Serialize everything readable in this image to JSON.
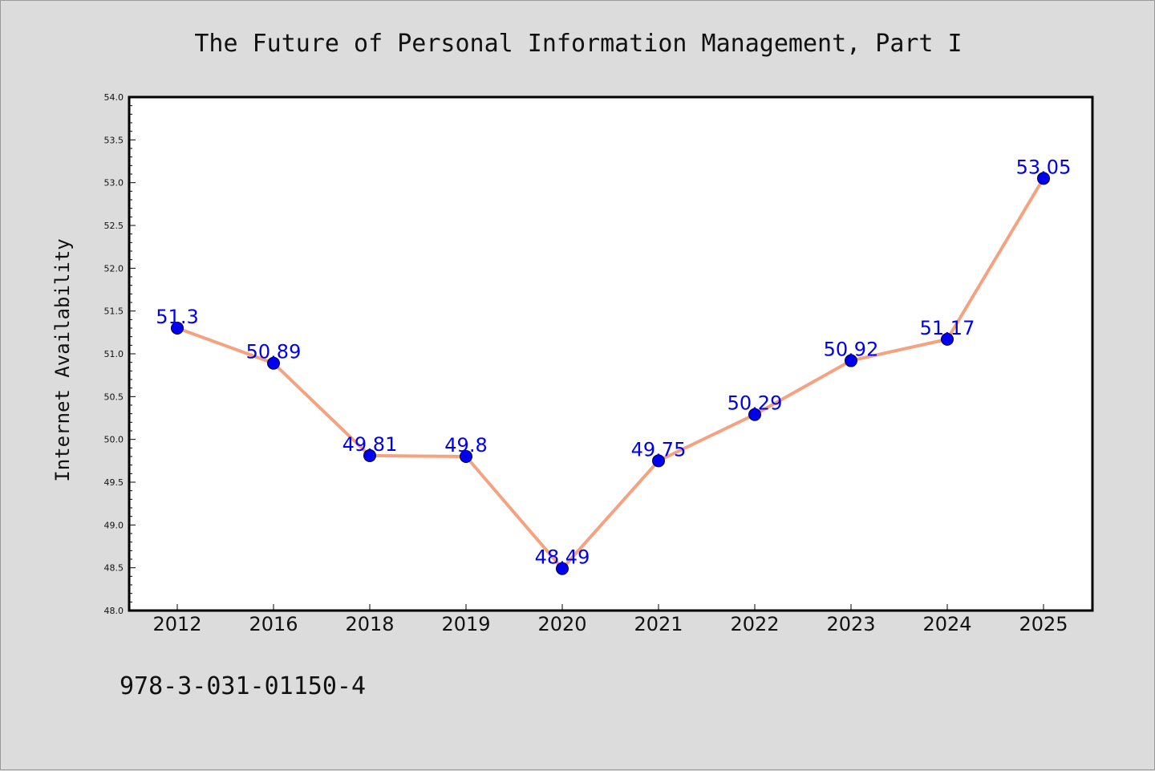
{
  "chart_data": {
    "type": "line",
    "title": "The Future of Personal Information Management, Part I",
    "xlabel": "",
    "ylabel": "Internet Availability",
    "categories": [
      "2012",
      "2016",
      "2018",
      "2019",
      "2020",
      "2021",
      "2022",
      "2023",
      "2024",
      "2025"
    ],
    "series": [
      {
        "values": [
          51.3,
          50.89,
          49.81,
          49.8,
          48.49,
          49.75,
          50.29,
          50.92,
          51.17,
          53.05
        ],
        "labels": [
          "51.3",
          "50.89",
          "49.81",
          "49.8",
          "48.49",
          "49.75",
          "50.29",
          "50.92",
          "51.17",
          "53.05"
        ],
        "line_color": "#f4a27f",
        "marker_color": "#0000ee",
        "label_color": "#0000ee"
      }
    ],
    "ylim": [
      48.0,
      54.0
    ],
    "yticks": [
      "48.0",
      "48.5",
      "49.0",
      "49.5",
      "50.0",
      "50.5",
      "51.0",
      "51.5",
      "52.0",
      "52.5",
      "53.0",
      "53.5",
      "54.0"
    ],
    "grid": false,
    "legend": "none"
  },
  "footer": {
    "isbn": "978-3-031-01150-4"
  },
  "colors": {
    "background": "#dcdcdc",
    "plot_background": "#ffffff",
    "axis": "#000000"
  }
}
